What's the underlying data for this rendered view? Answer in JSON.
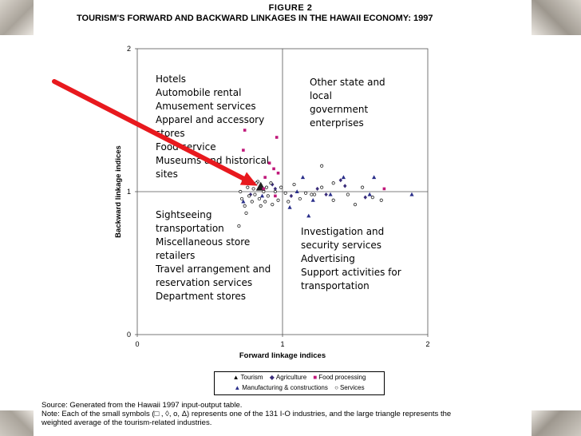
{
  "figure_label": "FIGURE 2",
  "title": "TOURISM'S FORWARD AND BACKWARD LINKAGES IN THE HAWAII ECONOMY: 1997",
  "chart_data": {
    "type": "scatter",
    "xlabel": "Forward linkage indices",
    "ylabel": "Backward linkage indices",
    "xlim": [
      0,
      2
    ],
    "ylim": [
      0,
      2
    ],
    "x_ticks": [
      "0",
      "1",
      "2"
    ],
    "y_ticks": [
      "0",
      "1",
      "2"
    ],
    "quadrant_lines": {
      "x": 1,
      "y": 1
    },
    "grid": false,
    "legend_position": "bottom",
    "quadrant_labels": {
      "top_left": [
        "Hotels",
        "Automobile rental",
        "Amusement services",
        "Apparel and accessory",
        "stores",
        "Food service",
        "Museums and historical",
        "sites"
      ],
      "top_right": [
        "Other state and",
        "local",
        "government",
        "enterprises"
      ],
      "bottom_left": [
        "Sightseeing",
        "transportation",
        "Miscellaneous store",
        "retailers",
        "Travel arrangement and",
        "reservation services",
        "Department stores"
      ],
      "bottom_right": [
        "Investigation and",
        "security services",
        "Advertising",
        "Support activities for",
        "transportation"
      ]
    },
    "series": [
      {
        "name": "Tourism",
        "marker": "triangle-large",
        "color": "#222222",
        "points": [
          [
            0.85,
            1.03
          ]
        ]
      },
      {
        "name": "Agriculture",
        "marker": "diamond",
        "color": "#3b2d7a",
        "points": [
          [
            0.78,
            0.98
          ],
          [
            0.93,
            1.05
          ],
          [
            1.06,
            0.97
          ],
          [
            1.24,
            1.02
          ],
          [
            1.4,
            1.08
          ],
          [
            1.43,
            1.04
          ],
          [
            1.57,
            0.96
          ],
          [
            0.95,
            1.02
          ],
          [
            1.3,
            0.98
          ]
        ]
      },
      {
        "name": "Food processing",
        "marker": "square",
        "color": "#c0187a",
        "points": [
          [
            0.74,
            1.43
          ],
          [
            0.73,
            1.29
          ],
          [
            0.96,
            1.38
          ],
          [
            0.91,
            1.2
          ],
          [
            0.88,
            1.1
          ],
          [
            0.94,
            1.16
          ],
          [
            0.87,
            1.02
          ],
          [
            0.95,
            0.97
          ],
          [
            1.7,
            1.02
          ],
          [
            0.97,
            1.13
          ]
        ]
      },
      {
        "name": "Manufacturing & constructions",
        "marker": "triangle",
        "color": "#2a2f8a",
        "points": [
          [
            0.73,
            0.93
          ],
          [
            0.79,
            1.06
          ],
          [
            0.86,
            0.97
          ],
          [
            1.05,
            0.89
          ],
          [
            1.14,
            1.1
          ],
          [
            1.18,
            0.83
          ],
          [
            1.21,
            0.94
          ],
          [
            1.33,
            0.98
          ],
          [
            1.42,
            1.1
          ],
          [
            1.6,
            0.98
          ],
          [
            1.63,
            1.1
          ],
          [
            1.89,
            0.98
          ],
          [
            1.1,
            1.0
          ]
        ]
      },
      {
        "name": "Services",
        "marker": "circle",
        "color": "#222222",
        "points": [
          [
            0.71,
            1.0
          ],
          [
            0.72,
            0.95
          ],
          [
            0.73,
            1.07
          ],
          [
            0.74,
            0.9
          ],
          [
            0.76,
            1.03
          ],
          [
            0.77,
            0.97
          ],
          [
            0.79,
            0.93
          ],
          [
            0.8,
            1.02
          ],
          [
            0.81,
            0.98
          ],
          [
            0.83,
            1.07
          ],
          [
            0.84,
            0.95
          ],
          [
            0.85,
            0.9
          ],
          [
            0.87,
            1.0
          ],
          [
            0.88,
            0.93
          ],
          [
            0.89,
            1.03
          ],
          [
            0.9,
            0.97
          ],
          [
            0.92,
            1.06
          ],
          [
            0.93,
            0.91
          ],
          [
            0.95,
            1.0
          ],
          [
            0.97,
            0.94
          ],
          [
            0.99,
            1.03
          ],
          [
            1.02,
            0.99
          ],
          [
            1.04,
            0.93
          ],
          [
            1.08,
            1.05
          ],
          [
            1.12,
            0.95
          ],
          [
            1.16,
            0.99
          ],
          [
            1.22,
            0.98
          ],
          [
            1.27,
            1.03
          ],
          [
            1.35,
            0.94
          ],
          [
            1.45,
            0.98
          ],
          [
            1.5,
            0.91
          ],
          [
            1.55,
            1.03
          ],
          [
            1.62,
            0.96
          ],
          [
            1.68,
            0.94
          ],
          [
            1.35,
            1.06
          ],
          [
            1.27,
            1.18
          ],
          [
            0.7,
            0.76
          ],
          [
            1.2,
            0.98
          ],
          [
            0.82,
            1.06
          ],
          [
            0.75,
            0.85
          ]
        ]
      }
    ]
  },
  "legend": {
    "row1": [
      "Tourism",
      "Agriculture",
      "Food processing"
    ],
    "row2": [
      "Manufacturing & constructions",
      "Services"
    ]
  },
  "source_lines": [
    "Source: Generated from the Hawaii 1997 input-output table.",
    "Note: Each of the small symbols (□ , ◊, o, Δ) represents one of the 131 I-O industries, and the large triangle represents the",
    "weighted average of the tourism-related industries."
  ],
  "colors": {
    "arrow": "#e8191e",
    "axis": "#555555",
    "food": "#c0187a",
    "manufacturing": "#2a2f8a",
    "agriculture": "#3b2d7a"
  }
}
